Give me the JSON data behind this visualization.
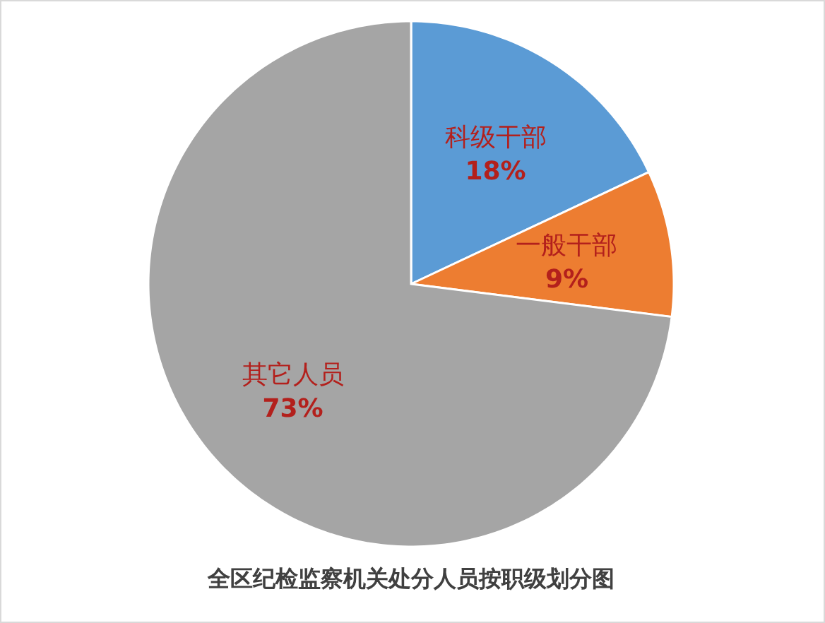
{
  "chart_data": {
    "type": "pie",
    "title": "全区纪检监察机关处分人员按职级划分图",
    "categories": [
      "科级干部",
      "一般干部",
      "其它人员"
    ],
    "values": [
      18,
      9,
      73
    ],
    "value_labels": [
      "18%",
      "9%",
      "73%"
    ],
    "colors": [
      "#5b9bd5",
      "#ed7d31",
      "#a5a5a5"
    ]
  }
}
